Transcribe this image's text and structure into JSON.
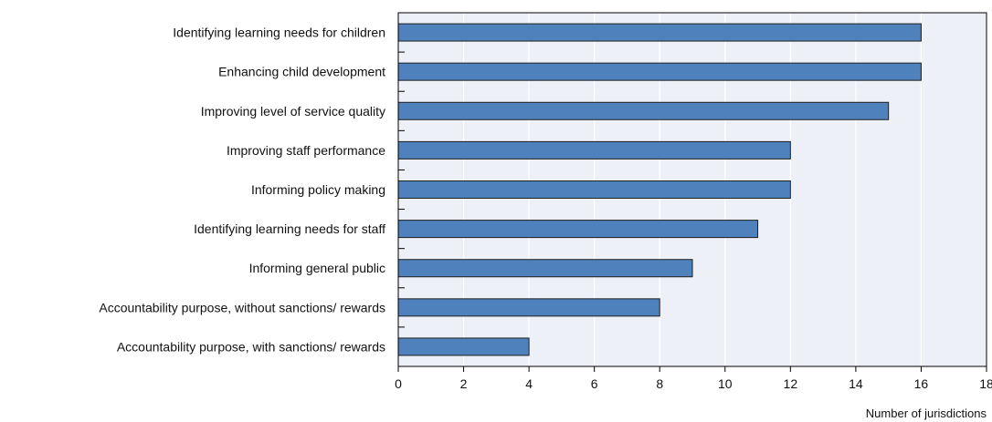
{
  "chart_data": {
    "type": "bar",
    "orientation": "horizontal",
    "categories": [
      "Identifying learning needs for children",
      "Enhancing child development",
      "Improving level of service quality",
      "Improving staff performance",
      "Informing policy making",
      "Identifying learning needs for staff",
      "Informing general public",
      "Accountability purpose, without sanctions/ rewards",
      "Accountability purpose, with sanctions/ rewards"
    ],
    "values": [
      16,
      16,
      15,
      12,
      12,
      11,
      9,
      8,
      4
    ],
    "xlabel": "Number of jurisdictions",
    "xlim": [
      0,
      18
    ],
    "xticks": [
      "0",
      "2",
      "4",
      "6",
      "8",
      "10",
      "12",
      "14",
      "16",
      "18"
    ],
    "grid": "vertical",
    "colors": {
      "bar_fill": "#4f81bd",
      "bar_stroke": "#1f1f1f",
      "plot_background": "#eef0f8",
      "gridline": "#ffffff"
    }
  }
}
